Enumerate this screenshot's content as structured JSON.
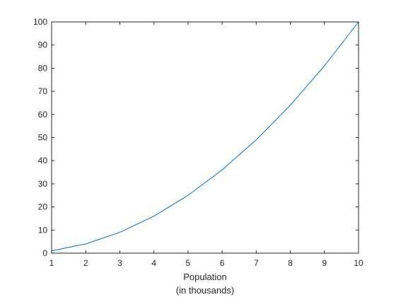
{
  "chart_data": {
    "type": "line",
    "title": "",
    "xlabel_lines": [
      "Population",
      "(in thousands)"
    ],
    "ylabel": "",
    "xlim": [
      1,
      10
    ],
    "ylim": [
      0,
      100
    ],
    "xticks": [
      1,
      2,
      3,
      4,
      5,
      6,
      7,
      8,
      9,
      10
    ],
    "yticks": [
      0,
      10,
      20,
      30,
      40,
      50,
      60,
      70,
      80,
      90,
      100
    ],
    "grid": false,
    "series": [
      {
        "color": "#0072BD",
        "x": [
          1,
          2,
          3,
          4,
          5,
          6,
          7,
          8,
          9,
          10
        ],
        "y": [
          1,
          4,
          9,
          16,
          25,
          36,
          49,
          64,
          81,
          100
        ]
      }
    ]
  }
}
